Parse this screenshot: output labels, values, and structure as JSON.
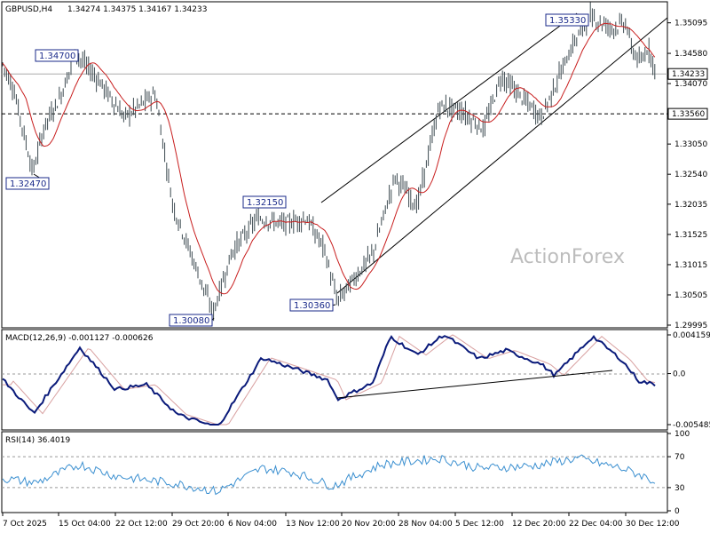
{
  "chart_data": [
    {
      "type": "candlestick",
      "title": "GBPUSD,H4",
      "ohlc": {
        "open": "1.34274",
        "high": "1.34375",
        "low": "1.34167",
        "close": "1.34233"
      },
      "y_ticks": [
        "1.35095",
        "1.34580",
        "1.34070",
        "1.33560",
        "1.33050",
        "1.32540",
        "1.32035",
        "1.31525",
        "1.31015",
        "1.30505",
        "1.29995"
      ],
      "ylim": [
        1.2995,
        1.3545
      ],
      "last_price": "1.34233",
      "support_level": "1.33560",
      "watermark": "ActionForex",
      "x_ticks": [
        "7 Oct 2025",
        "15 Oct 04:00",
        "22 Oct 12:00",
        "29 Oct 20:00",
        "6 Nov 04:00",
        "13 Nov 12:00",
        "20 Nov 20:00",
        "28 Nov 04:00",
        "5 Dec 12:00",
        "12 Dec 20:00",
        "22 Dec 04:00",
        "30 Dec 12:00"
      ],
      "callouts": [
        {
          "label": "1.32470",
          "value": 1.3247
        },
        {
          "label": "1.34700",
          "value": 1.347
        },
        {
          "label": "1.30080",
          "value": 1.3008
        },
        {
          "label": "1.32150",
          "value": 1.3215
        },
        {
          "label": "1.30360",
          "value": 1.3036
        },
        {
          "label": "1.35330",
          "value": 1.3533
        }
      ],
      "series": [
        {
          "name": "",
          "color": "#c81e1e",
          "kind": "moving-average"
        },
        {
          "name": "",
          "color": "#555555",
          "kind": "price"
        }
      ]
    },
    {
      "type": "line",
      "title": "MACD(12,26,9) -0.001127 -0.000626",
      "y_ticks": [
        "0.004159",
        "0.0",
        "-0.005485"
      ],
      "ylim": [
        -0.005485,
        0.004159
      ],
      "series": [
        {
          "name": "",
          "color": "#0a1a7a"
        },
        {
          "name": "",
          "color": "#d8a0a0"
        }
      ]
    },
    {
      "type": "line",
      "title": "RSI(14) 36.4019",
      "y_ticks": [
        "100",
        "70",
        "30",
        "0"
      ],
      "ylim": [
        0,
        100
      ],
      "series": [
        {
          "name": "",
          "color": "#3a8fd0"
        }
      ]
    }
  ]
}
